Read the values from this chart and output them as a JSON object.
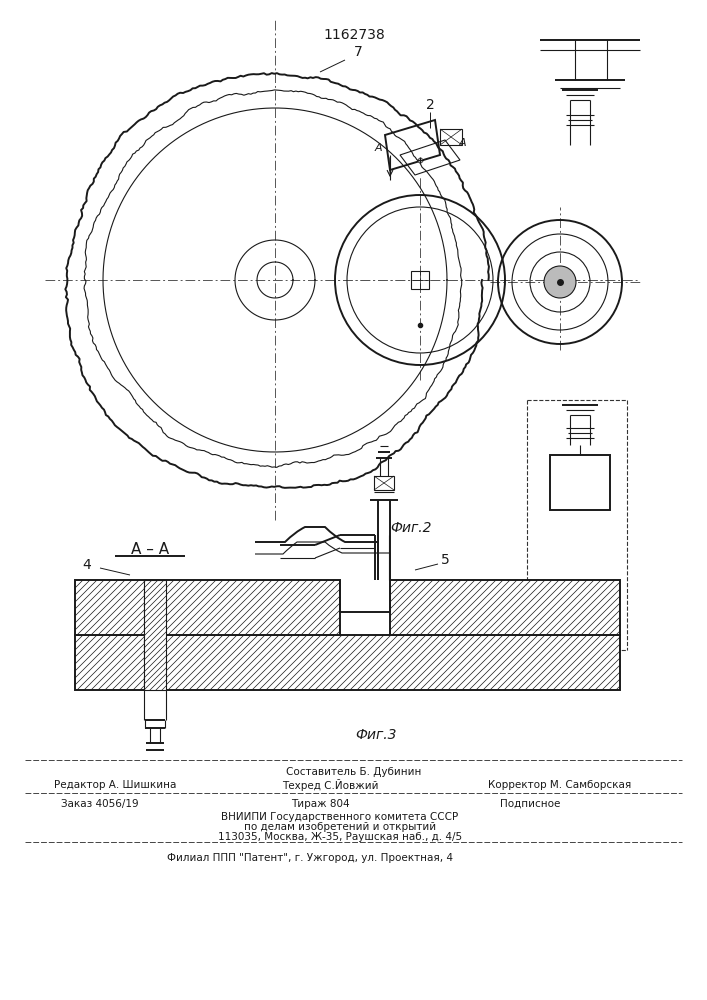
{
  "patent_number": "1162738",
  "bg_color": "#ffffff",
  "line_color": "#1a1a1a",
  "fig2_label": "Фиг.2",
  "fig3_label": "Фиг.3",
  "section_label": "А – А",
  "label_7": "7",
  "label_2": "2",
  "label_4": "4",
  "label_5": "5",
  "footer_line1": "Составитель Б. Дубинин",
  "footer_line2_left": "Редактор А. Шишкина",
  "footer_line2_mid": "Техред С.Йовжий",
  "footer_line2_right": "Корректор М. Самборская",
  "footer_line3_left": "Заказ 4056/19",
  "footer_line3_mid": "Тираж 804",
  "footer_line3_right": "Подписное",
  "footer_line4": "ВНИИПИ Государственного комитета СССР",
  "footer_line5": "по делам изобретений и открытий",
  "footer_line6": "113035, Москва, Ж-35, Раушская наб., д. 4/5",
  "footer_line7": "Филиал ППП \"Патент\", г. Ужгород, ул. Проектная, 4"
}
